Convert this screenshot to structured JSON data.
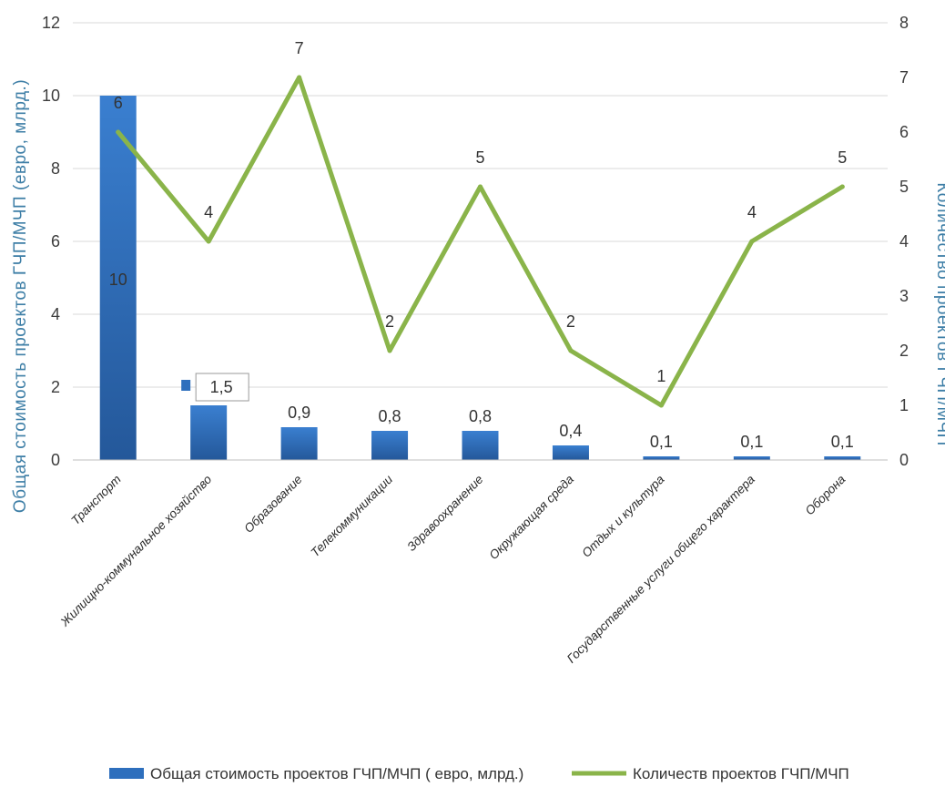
{
  "chart_data": {
    "type": "bar+line",
    "categories": [
      "Транспорт",
      "Жилищно-коммунальное хозяйство",
      "Образование",
      "Телекоммуникации",
      "Здравоохранение",
      "Окружающая среда",
      "Отдых и культура",
      "Государственные услуги общего характера",
      "Оборона"
    ],
    "series": [
      {
        "name": "Общая стоимость проектов ГЧП/МЧП ( евро,  млрд.)",
        "type": "bar",
        "axis": "left",
        "values": [
          10,
          1.5,
          0.9,
          0.8,
          0.8,
          0.4,
          0.1,
          0.1,
          0.1
        ],
        "labels": [
          "10",
          "1,5",
          "0,9",
          "0,8",
          "0,8",
          "0,4",
          "0,1",
          "0,1",
          "0,1"
        ],
        "color": "#2e6fbd"
      },
      {
        "name": "Количеств проектов ГЧП/МЧП",
        "type": "line",
        "axis": "right",
        "values": [
          6,
          4,
          7,
          2,
          5,
          2,
          1,
          4,
          5
        ],
        "labels": [
          "6",
          "4",
          "7",
          "2",
          "5",
          "2",
          "1",
          "4",
          "5"
        ],
        "color": "#8ab44a"
      }
    ],
    "ylabel": "Общая стоимость проектов ГЧП/МЧП (евро, млрд.)",
    "y2label": "Количество проектов ГЧП/МЧП",
    "ylim": [
      0,
      12
    ],
    "y2lim": [
      0,
      8
    ],
    "yticks": [
      "0",
      "2",
      "4",
      "6",
      "8",
      "10",
      "12"
    ],
    "y2ticks": [
      "0",
      "1",
      "2",
      "3",
      "4",
      "5",
      "6",
      "7",
      "8"
    ],
    "grid": true,
    "legend_position": "bottom"
  }
}
